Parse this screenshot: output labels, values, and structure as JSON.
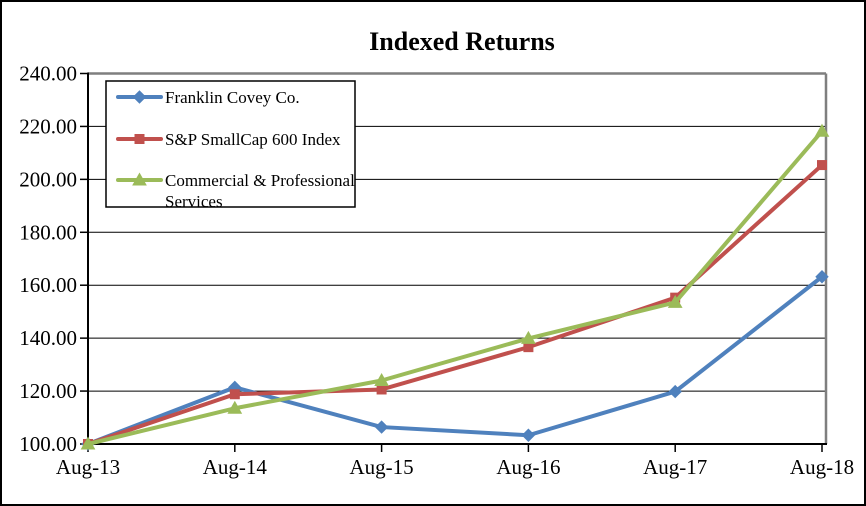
{
  "chart_data": {
    "type": "line",
    "title": "Indexed Returns",
    "categories": [
      "Aug-13",
      "Aug-14",
      "Aug-15",
      "Aug-16",
      "Aug-17",
      "Aug-18"
    ],
    "series": [
      {
        "name": "Franklin Covey Co.",
        "color": "#4F81BD",
        "marker": "diamond",
        "values": [
          100.0,
          121.4,
          106.4,
          103.3,
          119.8,
          163.2
        ]
      },
      {
        "name": "S&P SmallCap 600 Index",
        "color": "#C0504D",
        "marker": "square",
        "values": [
          100.0,
          118.8,
          120.6,
          136.6,
          155.3,
          205.4
        ]
      },
      {
        "name": "Commercial & Professional Services",
        "color": "#9BBB59",
        "marker": "triangle",
        "values": [
          100.0,
          113.5,
          124.0,
          139.9,
          153.5,
          218.2
        ]
      }
    ],
    "xlabel": "",
    "ylabel": "",
    "ylim": [
      100,
      240
    ],
    "ytick_step": 20,
    "y_tick_labels": [
      "100.00",
      "120.00",
      "140.00",
      "160.00",
      "180.00",
      "200.00",
      "220.00",
      "240.00"
    ],
    "grid": "horizontal-black",
    "legend_position": "top-left",
    "legend_border_color": "#000000",
    "axis_color": "#000000",
    "plot_border_color": "#7F7F7F",
    "background": "#FFFFFF"
  }
}
